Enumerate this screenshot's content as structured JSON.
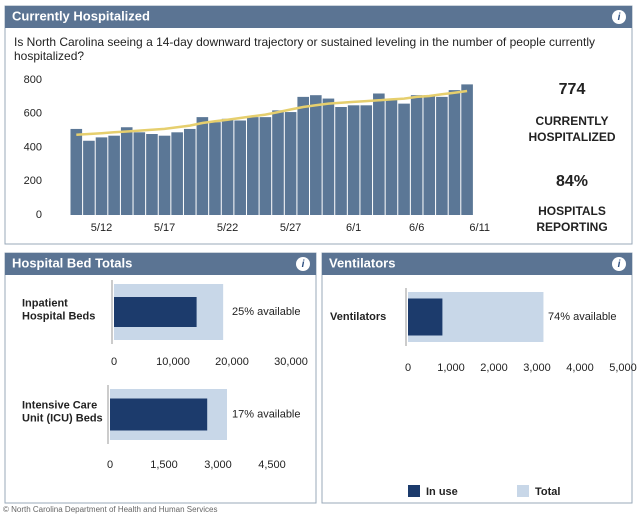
{
  "panels": [
    "Currently Hospitalized",
    "Hospital Bed Totals",
    "Ventilators"
  ],
  "question": "Is North Carolina seeing a 14-day downward trajectory or sustained leveling in the number of people currently hospitalized?",
  "stats": [
    {
      "value": "774",
      "label": [
        "CURRENTLY",
        "HOSPITALIZED"
      ]
    },
    {
      "value": "84%",
      "label": [
        "HOSPITALS",
        "REPORTING"
      ]
    }
  ],
  "legend": [
    {
      "name": "In use",
      "color": "#1c3b6c"
    },
    {
      "name": "Total",
      "color": "#c8d7e8"
    }
  ],
  "footer": "© North Carolina Department of Health and Human Services",
  "chart_data": [
    {
      "type": "bar",
      "categories": [
        null,
        null,
        "5/12",
        null,
        null,
        null,
        null,
        "5/17",
        null,
        null,
        null,
        null,
        "5/22",
        null,
        null,
        null,
        null,
        "5/27",
        null,
        null,
        null,
        null,
        "6/1",
        null,
        null,
        null,
        null,
        "6/6",
        null,
        null,
        null,
        null,
        "6/11"
      ],
      "values": [
        510,
        440,
        460,
        470,
        520,
        490,
        480,
        470,
        490,
        510,
        580,
        550,
        570,
        560,
        580,
        580,
        620,
        610,
        700,
        710,
        690,
        640,
        650,
        650,
        720,
        690,
        660,
        710,
        710,
        700,
        740,
        774,
        null
      ],
      "color": "#5b7796",
      "trend": [
        475,
        480,
        485,
        490,
        495,
        500,
        505,
        510,
        520,
        530,
        545,
        555,
        565,
        575,
        585,
        595,
        610,
        625,
        640,
        650,
        660,
        665,
        670,
        675,
        680,
        685,
        690,
        700,
        705,
        715,
        725,
        735,
        null
      ],
      "trend_color": "#e6cf6e",
      "ylim": [
        0,
        800
      ],
      "yticks": [
        0,
        200,
        400,
        600,
        800
      ]
    },
    {
      "type": "hbar",
      "label": [
        "Inpatient",
        "Hospital Beds"
      ],
      "in_use": 14000,
      "total": 18500,
      "annotation": "25% available",
      "xlim": [
        0,
        30000
      ],
      "xticks": [
        0,
        {
          "value": 10000,
          "label": "10,000"
        },
        {
          "value": 20000,
          "label": "20,000"
        },
        {
          "value": 30000,
          "label": "30,000"
        }
      ]
    },
    {
      "type": "hbar",
      "label": [
        "Intensive Care",
        "Unit (ICU) Beds"
      ],
      "in_use": 2700,
      "total": 3250,
      "annotation": "17% available",
      "xlim": [
        0,
        4500
      ],
      "xticks": [
        0,
        {
          "value": 1500,
          "label": "1,500"
        },
        {
          "value": 3000,
          "label": "3,000"
        },
        {
          "value": 4500,
          "label": "4,500"
        }
      ]
    },
    {
      "type": "hbar",
      "label": [
        "Ventilators"
      ],
      "in_use": 800,
      "total": 3150,
      "annotation": "74% available",
      "xlim": [
        0,
        5000
      ],
      "xticks": [
        0,
        {
          "value": 1000,
          "label": "1,000"
        },
        {
          "value": 2000,
          "label": "2,000"
        },
        {
          "value": 3000,
          "label": "3,000"
        },
        {
          "value": 4000,
          "label": "4,000"
        },
        {
          "value": 5000,
          "label": "5,000"
        }
      ]
    }
  ]
}
